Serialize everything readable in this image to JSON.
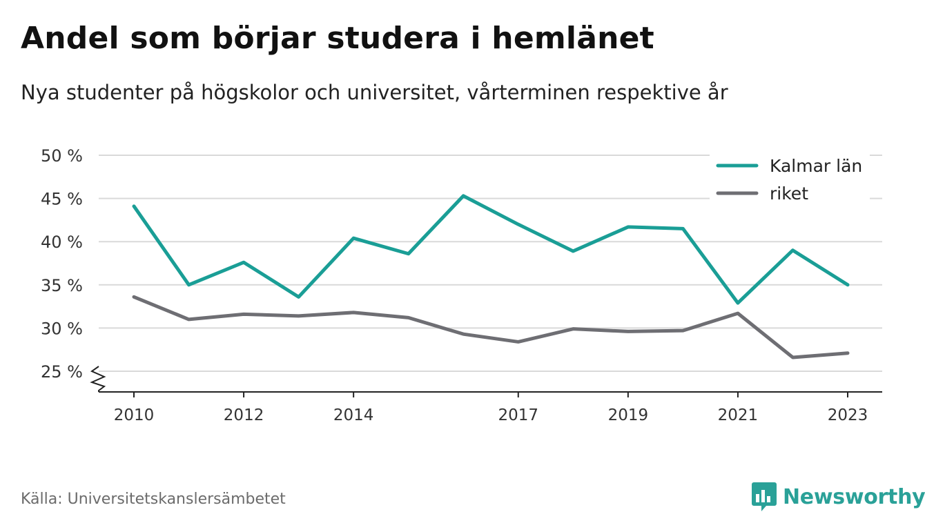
{
  "title": "Andel som börjar studera i hemlänet",
  "subtitle": "Nya studenter på högskolor och universitet, vårterminen respektive år",
  "source": "Källa: Universitetskanslersämbetet",
  "brand": {
    "name": "Newsworthy",
    "icon": "bar-chart-speech-bubble-icon",
    "color": "#2aa198"
  },
  "chart_data": {
    "type": "line",
    "x": [
      2010,
      2011,
      2012,
      2013,
      2014,
      2015,
      2016,
      2017,
      2018,
      2019,
      2020,
      2021,
      2022,
      2023
    ],
    "x_tick_labels": [
      "2010",
      "2012",
      "2014",
      "2017",
      "2019",
      "2021",
      "2023"
    ],
    "y_tick_labels": [
      "25 %",
      "30 %",
      "35 %",
      "40 %",
      "45 %",
      "50 %"
    ],
    "y_ticks": [
      25,
      30,
      35,
      40,
      45,
      50
    ],
    "ylim": [
      22.5,
      50
    ],
    "y_axis_break": true,
    "grid": true,
    "legend_position": "top-right",
    "series": [
      {
        "name": "Kalmar län",
        "color": "#1a9e96",
        "values": [
          44.1,
          35.0,
          37.6,
          33.6,
          40.4,
          38.6,
          45.3,
          42.0,
          38.9,
          41.7,
          41.5,
          32.9,
          39.0,
          35.0
        ]
      },
      {
        "name": "riket",
        "color": "#6e6e73",
        "values": [
          33.6,
          31.0,
          31.6,
          31.4,
          31.8,
          31.2,
          29.3,
          28.4,
          29.9,
          29.6,
          29.7,
          31.7,
          26.6,
          27.1
        ]
      }
    ]
  }
}
